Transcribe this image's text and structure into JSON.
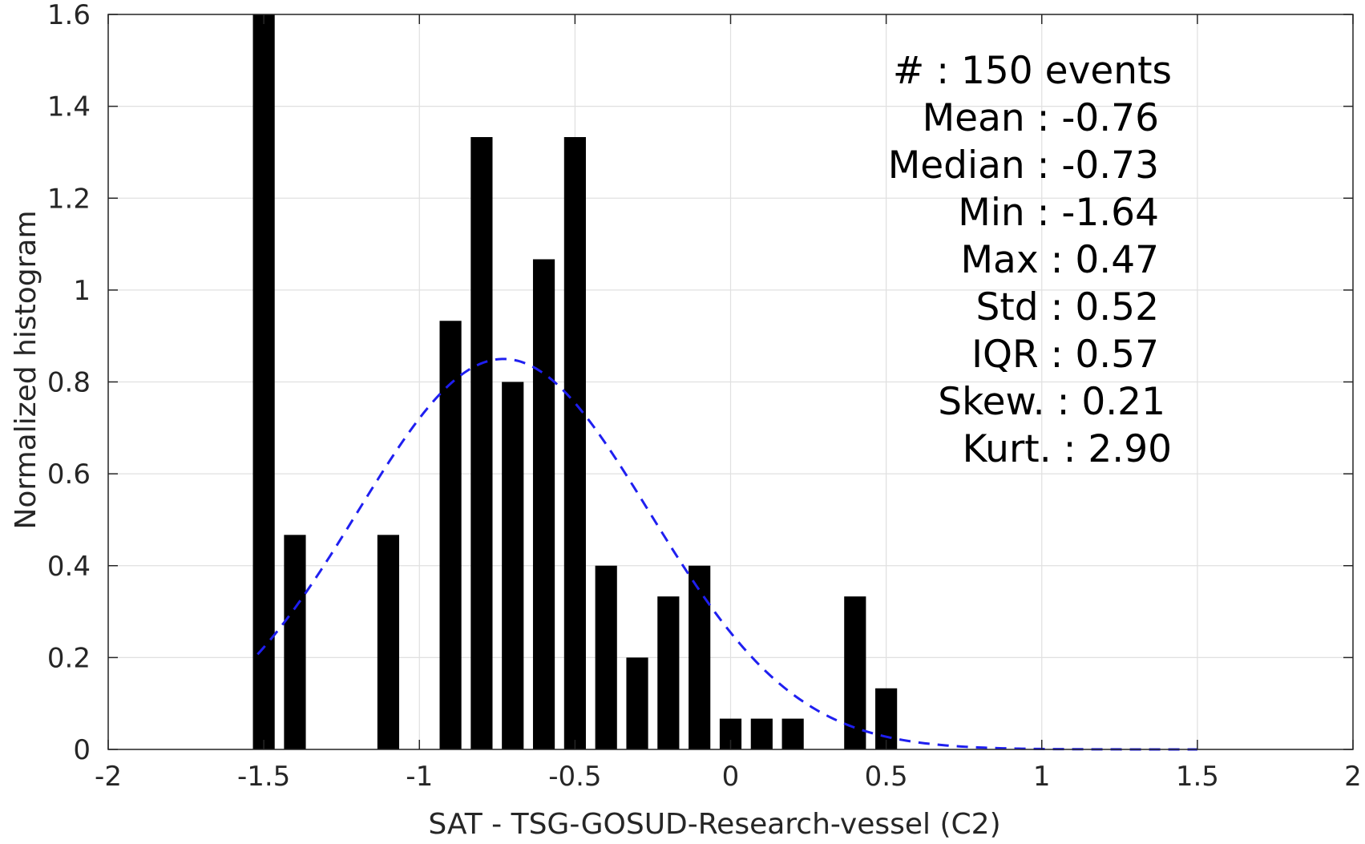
{
  "chart_data": {
    "type": "bar",
    "xlabel": "SAT - TSG-GOSUD-Research-vessel (C2)",
    "ylabel": "Normalized histogram",
    "xlim": [
      -2,
      2
    ],
    "ylim": [
      0,
      1.6
    ],
    "xticks": [
      -2,
      -1.5,
      -1,
      -0.5,
      0,
      0.5,
      1,
      1.5,
      2
    ],
    "xtick_labels": [
      "-2",
      "-1.5",
      "-1",
      "-0.5",
      "0",
      "0.5",
      "1",
      "1.5",
      "2"
    ],
    "yticks": [
      0,
      0.2,
      0.4,
      0.6,
      0.8,
      1,
      1.2,
      1.4,
      1.6
    ],
    "ytick_labels": [
      "0",
      "0.2",
      "0.4",
      "0.6",
      "0.8",
      "1",
      "1.2",
      "1.4",
      "1.6"
    ],
    "grid": true,
    "bar_width": 0.07,
    "bars": [
      {
        "x": -1.5,
        "value": 1.6
      },
      {
        "x": -1.4,
        "value": 0.467
      },
      {
        "x": -1.1,
        "value": 0.467
      },
      {
        "x": -0.9,
        "value": 0.933
      },
      {
        "x": -0.8,
        "value": 1.333
      },
      {
        "x": -0.7,
        "value": 0.8
      },
      {
        "x": -0.6,
        "value": 1.067
      },
      {
        "x": -0.5,
        "value": 1.333
      },
      {
        "x": -0.4,
        "value": 0.4
      },
      {
        "x": -0.3,
        "value": 0.2
      },
      {
        "x": -0.2,
        "value": 0.333
      },
      {
        "x": -0.1,
        "value": 0.4
      },
      {
        "x": 0.0,
        "value": 0.067
      },
      {
        "x": 0.1,
        "value": 0.067
      },
      {
        "x": 0.2,
        "value": 0.067
      },
      {
        "x": 0.4,
        "value": 0.333
      },
      {
        "x": 0.5,
        "value": 0.133
      }
    ],
    "normal_fit": {
      "mean": -0.73,
      "std": 0.47,
      "x_range": [
        -1.52,
        1.5
      ],
      "line_style": "dashed",
      "color": "#1f1ff0"
    },
    "bar_color": "#000000",
    "grid_color": "#e0e0e0",
    "stats": [
      {
        "label": "#  : 150 events",
        "anchor": "end",
        "shift": 1.0
      },
      {
        "label": "Mean : -0.76",
        "anchor": "end",
        "shift": 0.0
      },
      {
        "label": "Median : -0.73",
        "anchor": "end",
        "shift": 0.0
      },
      {
        "label": "Min : -1.64",
        "anchor": "end",
        "shift": 0.0
      },
      {
        "label": "Max : 0.47",
        "anchor": "end",
        "shift": 0.0
      },
      {
        "label": "Std : 0.52",
        "anchor": "end",
        "shift": 0.0
      },
      {
        "label": "IQR : 0.57",
        "anchor": "end",
        "shift": 0.0
      },
      {
        "label": "Skew. : 0.21",
        "anchor": "end",
        "shift": 0.5
      },
      {
        "label": "Kurt. : 2.90",
        "anchor": "end",
        "shift": 1.0
      }
    ]
  }
}
